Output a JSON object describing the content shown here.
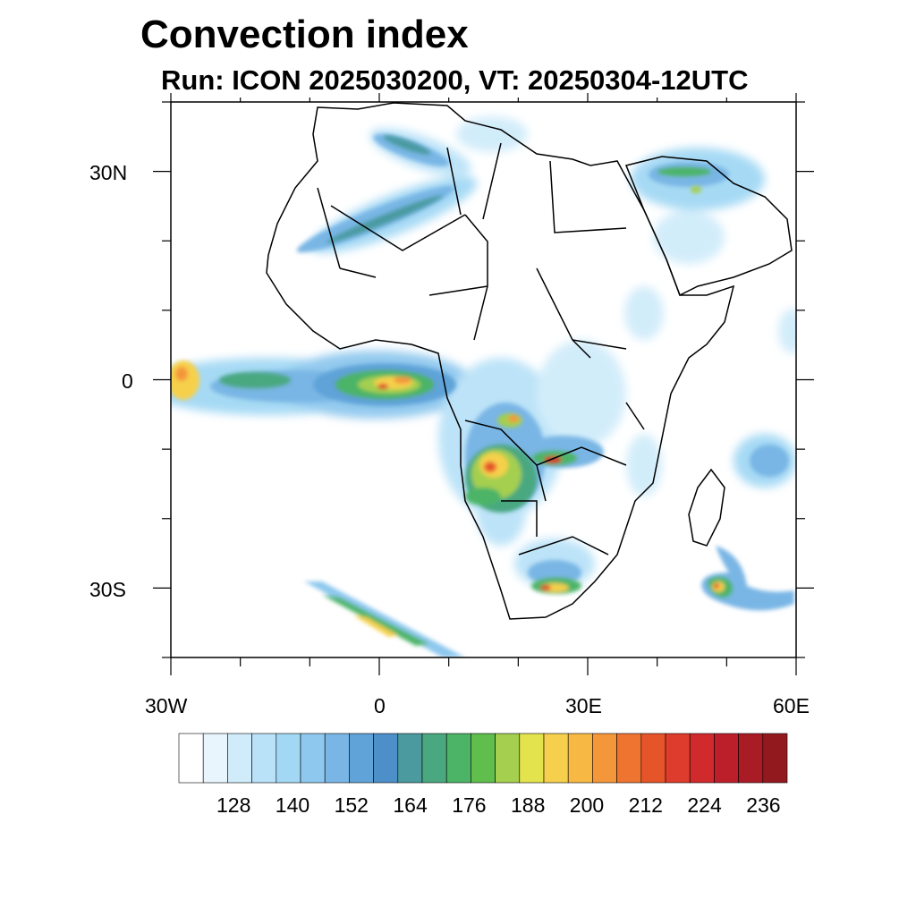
{
  "title": "Convection index",
  "subtitle": "Run: ICON 2025030200,  VT: 20250304-12UTC",
  "axes": {
    "x_tick_labels": [
      "30W",
      "0",
      "30E",
      "60E"
    ],
    "y_tick_labels": [
      "30N",
      "0",
      "30S"
    ],
    "lon_range": [
      -30,
      60
    ],
    "lat_range": [
      -40,
      40
    ]
  },
  "colorbar": {
    "tick_labels": [
      "128",
      "140",
      "152",
      "164",
      "176",
      "188",
      "200",
      "212",
      "224",
      "236"
    ],
    "colors": [
      "#ffffff",
      "#e8f5fd",
      "#d0ecfa",
      "#b9e2f8",
      "#a2d8f4",
      "#8ec8ee",
      "#79b6e5",
      "#5fa3d8",
      "#4d8fc9",
      "#4a9aa0",
      "#49a880",
      "#4cb466",
      "#5fbe4c",
      "#a4cf4f",
      "#e3e34e",
      "#f6d04c",
      "#f8b944",
      "#f4963a",
      "#ef7430",
      "#e6542a",
      "#de3c2c",
      "#d12a2c",
      "#bd1f2a",
      "#a91b25",
      "#921a1f"
    ]
  },
  "colors": {
    "land": "#ffffff",
    "ocean": "#ffffff",
    "borders": "#000000"
  }
}
